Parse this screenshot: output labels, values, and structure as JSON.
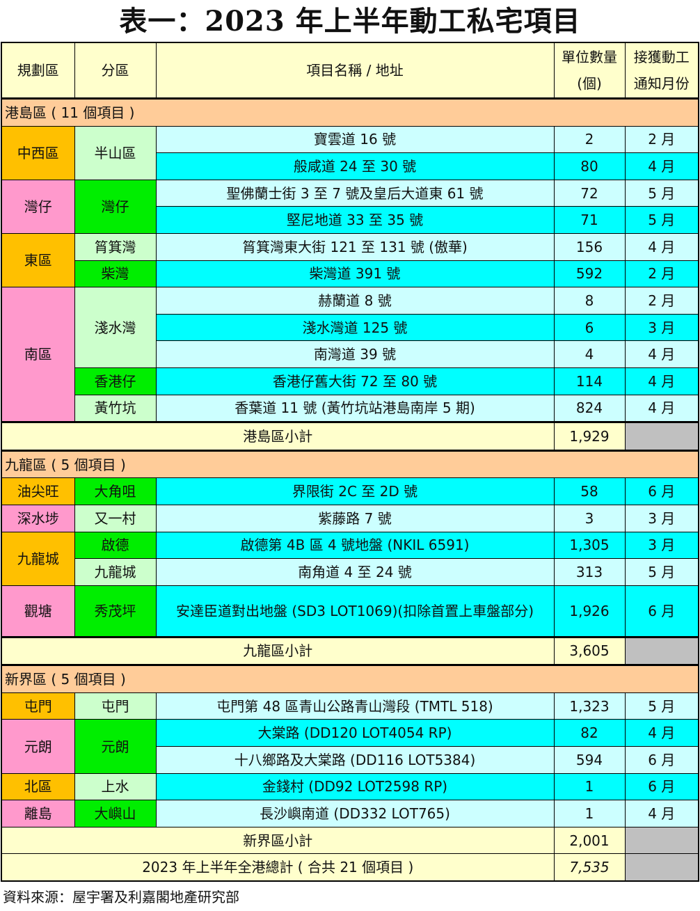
{
  "title": "表一：2023 年上半年動工私宅項目",
  "colors": {
    "orange": "#FFC000",
    "pink": "#FF99CC",
    "light_green": "#CCFFCC",
    "green": "#00EE00",
    "light_cyan": "#CCFFFF",
    "cyan": "#00FFFF"
  },
  "headers": {
    "district": "規劃區",
    "subdistrict": "分區",
    "project": "項目名稱 / 地址",
    "units_line1": "單位數量",
    "units_line2": "(個)",
    "month_line1": "接獲動工",
    "month_line2": "通知月份"
  },
  "sections": [
    {
      "header": "港島區 ( 11 個項目 )",
      "subtotal_label": "港島區小計",
      "subtotal": "1,929",
      "rows": [
        {
          "district": "中西區",
          "district_span": 2,
          "district_color": "orange",
          "sub": "半山區",
          "sub_span": 2,
          "sub_color": "light_green",
          "project": "寶雲道 16 號",
          "units": "2",
          "month": "2 月",
          "row_color": "light_cyan"
        },
        {
          "project": "般咸道 24 至 30 號",
          "units": "80",
          "month": "4 月",
          "row_color": "cyan"
        },
        {
          "district": "灣仔",
          "district_span": 2,
          "district_color": "pink",
          "sub": "灣仔",
          "sub_span": 2,
          "sub_color": "green",
          "project": "聖佛蘭士街 3 至 7 號及皇后大道東 61 號",
          "units": "72",
          "month": "5 月",
          "row_color": "light_cyan"
        },
        {
          "project": "堅尼地道 33 至 35 號",
          "units": "71",
          "month": "5 月",
          "row_color": "cyan"
        },
        {
          "district": "東區",
          "district_span": 2,
          "district_color": "orange",
          "sub": "筲箕灣",
          "sub_span": 1,
          "sub_color": "light_green",
          "project": "筲箕灣東大街 121 至 131 號 (傲華)",
          "units": "156",
          "month": "4 月",
          "row_color": "light_cyan"
        },
        {
          "sub": "柴灣",
          "sub_span": 1,
          "sub_color": "green",
          "project": "柴灣道 391 號",
          "units": "592",
          "month": "2 月",
          "row_color": "cyan"
        },
        {
          "district": "南區",
          "district_span": 5,
          "district_color": "pink",
          "sub": "淺水灣",
          "sub_span": 3,
          "sub_color": "light_green",
          "project": "赫蘭道 8 號",
          "units": "8",
          "month": "2 月",
          "row_color": "light_cyan"
        },
        {
          "project": "淺水灣道 125 號",
          "units": "6",
          "month": "3 月",
          "row_color": "cyan"
        },
        {
          "project": "南灣道 39 號",
          "units": "4",
          "month": "4 月",
          "row_color": "light_cyan"
        },
        {
          "sub": "香港仔",
          "sub_span": 1,
          "sub_color": "green",
          "project": "香港仔舊大街 72 至 80 號",
          "units": "114",
          "month": "4 月",
          "row_color": "cyan"
        },
        {
          "sub": "黃竹坑",
          "sub_span": 1,
          "sub_color": "light_green",
          "project": "香葉道 11 號 (黃竹坑站港島南岸 5 期)",
          "units": "824",
          "month": "4 月",
          "row_color": "light_cyan"
        }
      ]
    },
    {
      "header": "九龍區 ( 5 個項目 )",
      "subtotal_label": "九龍區小計",
      "subtotal": "3,605",
      "rows": [
        {
          "district": "油尖旺",
          "district_span": 1,
          "district_color": "orange",
          "sub": "大角咀",
          "sub_span": 1,
          "sub_color": "green",
          "project": "界限街 2C 至 2D 號",
          "units": "58",
          "month": "6 月",
          "row_color": "cyan"
        },
        {
          "district": "深水埗",
          "district_span": 1,
          "district_color": "pink",
          "sub": "又一村",
          "sub_span": 1,
          "sub_color": "light_green",
          "project": "紫藤路 7 號",
          "units": "3",
          "month": "3 月",
          "row_color": "light_cyan"
        },
        {
          "district": "九龍城",
          "district_span": 2,
          "district_color": "orange",
          "sub": "啟德",
          "sub_span": 1,
          "sub_color": "green",
          "project": "啟德第 4B 區 4 號地盤 (NKIL 6591)",
          "units": "1,305",
          "month": "3 月",
          "row_color": "cyan"
        },
        {
          "sub": "九龍城",
          "sub_span": 1,
          "sub_color": "light_green",
          "project": "南角道 4 至 24 號",
          "units": "313",
          "month": "5 月",
          "row_color": "light_cyan"
        },
        {
          "district": "觀塘",
          "district_span": 1,
          "district_color": "pink",
          "sub": "秀茂坪",
          "sub_span": 1,
          "sub_color": "green",
          "project": "安達臣道對出地盤 (SD3 LOT1069)(扣除首置上車盤部分)",
          "units": "1,926",
          "month": "6 月",
          "row_color": "cyan",
          "tall": true
        }
      ]
    },
    {
      "header": "新界區 ( 5 個項目 )",
      "subtotal_label": "新界區小計",
      "subtotal": "2,001",
      "rows": [
        {
          "district": "屯門",
          "district_span": 1,
          "district_color": "orange",
          "sub": "屯門",
          "sub_span": 1,
          "sub_color": "light_green",
          "project": "屯門第 48 區青山公路青山灣段 (TMTL 518)",
          "units": "1,323",
          "month": "5 月",
          "row_color": "light_cyan"
        },
        {
          "district": "元朗",
          "district_span": 2,
          "district_color": "pink",
          "sub": "元朗",
          "sub_span": 2,
          "sub_color": "green",
          "project": "大棠路 (DD120 LOT4054 RP)",
          "units": "82",
          "month": "4 月",
          "row_color": "cyan"
        },
        {
          "project": "十八鄉路及大棠路 (DD116 LOT5384)",
          "units": "594",
          "month": "6 月",
          "row_color": "light_cyan"
        },
        {
          "district": "北區",
          "district_span": 1,
          "district_color": "orange",
          "sub": "上水",
          "sub_span": 1,
          "sub_color": "light_green",
          "project": "金錢村 (DD92 LOT2598 RP)",
          "units": "1",
          "month": "6 月",
          "row_color": "cyan"
        },
        {
          "district": "離島",
          "district_span": 1,
          "district_color": "pink",
          "sub": "大嶼山",
          "sub_span": 1,
          "sub_color": "green",
          "project": "長沙嶼南道 (DD332 LOT765)",
          "units": "1",
          "month": "4 月",
          "row_color": "light_cyan"
        }
      ]
    }
  ],
  "grand_total_label": "2023 年上半年全港總計 ( 合共 21 個項目 )",
  "grand_total": "7,535",
  "source": "資料來源：屋宇署及利嘉閣地產研究部"
}
